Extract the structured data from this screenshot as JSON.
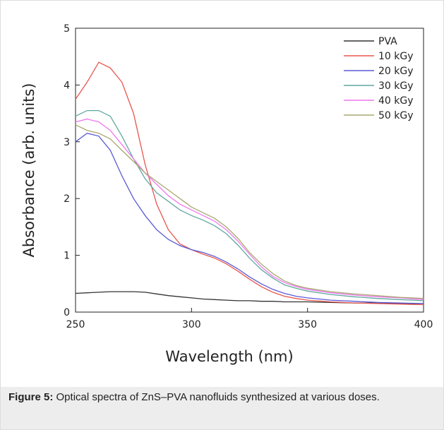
{
  "chart_data": {
    "type": "line",
    "xlabel": "Wavelength (nm)",
    "ylabel": "Absorbance (arb. units)",
    "x": [
      250,
      255,
      260,
      265,
      270,
      275,
      280,
      285,
      290,
      295,
      300,
      305,
      310,
      315,
      320,
      325,
      330,
      335,
      340,
      345,
      350,
      360,
      370,
      380,
      390,
      400
    ],
    "xlim": [
      250,
      400
    ],
    "xticks": [
      250,
      300,
      350,
      400
    ],
    "ylim": [
      0,
      5
    ],
    "yticks": [
      0,
      1,
      2,
      3,
      4,
      5
    ],
    "legend": "upper right",
    "series": [
      {
        "name": "PVA",
        "color": "#333333",
        "values": [
          0.33,
          0.34,
          0.35,
          0.36,
          0.36,
          0.36,
          0.35,
          0.32,
          0.29,
          0.27,
          0.25,
          0.23,
          0.22,
          0.21,
          0.2,
          0.2,
          0.19,
          0.19,
          0.18,
          0.18,
          0.18,
          0.17,
          0.16,
          0.16,
          0.15,
          0.15
        ]
      },
      {
        "name": "10 kGy",
        "color": "#e8554e",
        "values": [
          3.75,
          4.05,
          4.4,
          4.3,
          4.05,
          3.5,
          2.6,
          1.9,
          1.45,
          1.2,
          1.1,
          1.02,
          0.95,
          0.85,
          0.72,
          0.58,
          0.45,
          0.35,
          0.28,
          0.24,
          0.21,
          0.18,
          0.16,
          0.15,
          0.14,
          0.13
        ]
      },
      {
        "name": "20 kGy",
        "color": "#5a5ad6",
        "values": [
          3.0,
          3.15,
          3.1,
          2.85,
          2.4,
          2.0,
          1.7,
          1.45,
          1.28,
          1.17,
          1.1,
          1.05,
          0.98,
          0.88,
          0.76,
          0.62,
          0.5,
          0.4,
          0.33,
          0.28,
          0.25,
          0.21,
          0.19,
          0.17,
          0.16,
          0.15
        ]
      },
      {
        "name": "30 kGy",
        "color": "#5fa8a0",
        "values": [
          3.45,
          3.55,
          3.55,
          3.45,
          3.1,
          2.7,
          2.35,
          2.1,
          1.95,
          1.8,
          1.7,
          1.62,
          1.52,
          1.38,
          1.18,
          0.95,
          0.75,
          0.6,
          0.48,
          0.42,
          0.37,
          0.31,
          0.27,
          0.24,
          0.22,
          0.2
        ]
      },
      {
        "name": "40 kGy",
        "color": "#ee77ee",
        "values": [
          3.35,
          3.4,
          3.35,
          3.2,
          2.95,
          2.7,
          2.45,
          2.25,
          2.05,
          1.9,
          1.8,
          1.7,
          1.6,
          1.45,
          1.25,
          1.02,
          0.8,
          0.63,
          0.52,
          0.45,
          0.4,
          0.34,
          0.3,
          0.27,
          0.25,
          0.22
        ]
      },
      {
        "name": "50 kGy",
        "color": "#a8a870",
        "values": [
          3.3,
          3.2,
          3.15,
          3.05,
          2.85,
          2.65,
          2.45,
          2.3,
          2.15,
          2.0,
          1.85,
          1.75,
          1.65,
          1.5,
          1.3,
          1.05,
          0.85,
          0.68,
          0.55,
          0.47,
          0.42,
          0.36,
          0.32,
          0.29,
          0.26,
          0.24
        ]
      }
    ]
  },
  "caption": {
    "label": "Figure 5:",
    "text": "Optical spectra of ZnS–PVA nanofluids synthesized at various doses."
  }
}
